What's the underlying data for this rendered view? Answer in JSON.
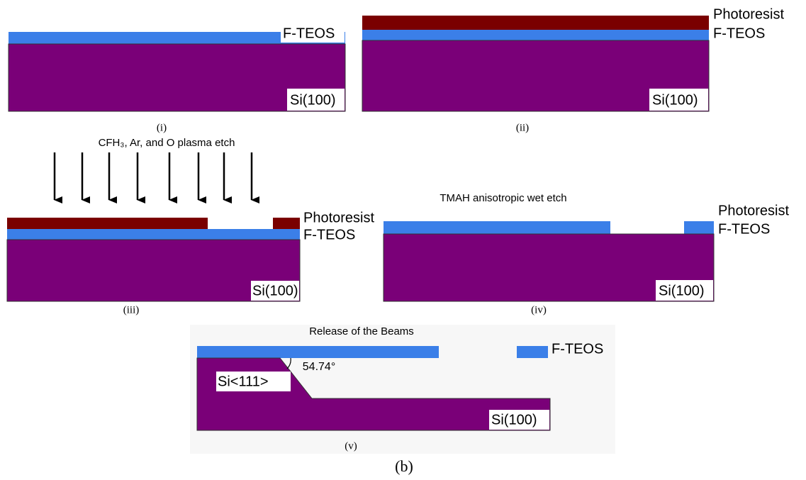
{
  "panels": [
    {
      "caption": "(i)",
      "labels": [
        "F-TEOS",
        "Si(100)"
      ]
    },
    {
      "caption": "(ii)",
      "labels": [
        "Photoresist",
        "F-TEOS",
        "Si(100)"
      ]
    },
    {
      "caption": "(iii)",
      "process": "CFH₃, Ar, and O plasma etch",
      "labels": [
        "Photoresist",
        "F-TEOS",
        "Si(100)"
      ]
    },
    {
      "caption": "(iv)",
      "process": "TMAH anisotropic wet etch",
      "labels": [
        "Photoresist",
        "F-TEOS",
        "Si(100)"
      ]
    },
    {
      "caption": "(v)",
      "process": "Release of the Beams",
      "labels": [
        "F-TEOS",
        "Si<111>",
        "54.74°",
        "Si(100)"
      ]
    }
  ],
  "figure_label": "(b)"
}
